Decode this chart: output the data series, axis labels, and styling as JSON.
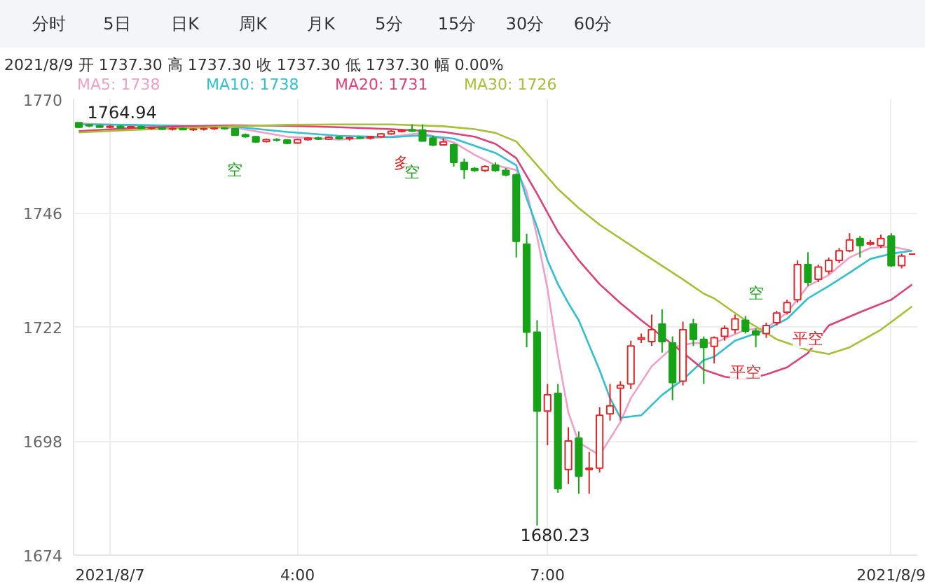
{
  "chart_data": {
    "type": "candlestick",
    "annotations": [
      "分时",
      "5日",
      "日K",
      "周K",
      "月K",
      "5分",
      "15分",
      "30分",
      "60分",
      "2021/8/9 开 1737.30 高 1737.30 收 1737.30 低 1737.30 幅 0.00%",
      "空",
      "多",
      "空",
      "空",
      "平空",
      "平空",
      "1764.94",
      "1680.23"
    ],
    "categories": [
      null,
      null,
      null,
      "2021/8/7",
      null,
      null,
      null,
      null,
      null,
      null,
      null,
      null,
      null,
      null,
      null,
      null,
      null,
      null,
      null,
      null,
      null,
      "4:00",
      null,
      null,
      null,
      null,
      null,
      null,
      null,
      null,
      null,
      null,
      null,
      null,
      null,
      null,
      null,
      null,
      null,
      null,
      null,
      null,
      null,
      null,
      null,
      "7:00",
      null,
      null,
      null,
      null,
      null,
      null,
      null,
      null,
      null,
      null,
      null,
      null,
      null,
      null,
      null,
      null,
      null,
      null,
      null,
      null,
      null,
      null,
      null,
      null,
      null,
      null,
      null,
      null,
      null,
      null,
      null,
      null,
      "2021/8/9",
      null,
      null
    ],
    "ohlc": [
      [
        1764.94,
        1764.94,
        1763.8,
        1764.0
      ],
      [
        1764.5,
        1764.7,
        1764.0,
        1764.3
      ],
      [
        1764.3,
        1764.6,
        1763.9,
        1764.0
      ],
      [
        1764.0,
        1764.4,
        1763.8,
        1764.2
      ],
      [
        1764.2,
        1764.4,
        1763.8,
        1763.9
      ],
      [
        1763.9,
        1764.3,
        1763.7,
        1764.1
      ],
      [
        1764.1,
        1764.3,
        1763.6,
        1763.8
      ],
      [
        1763.8,
        1764.1,
        1763.5,
        1763.9
      ],
      [
        1763.9,
        1764.1,
        1763.4,
        1763.6
      ],
      [
        1763.6,
        1764.0,
        1763.3,
        1763.7
      ],
      [
        1763.7,
        1763.9,
        1763.4,
        1763.5
      ],
      [
        1763.5,
        1763.8,
        1763.2,
        1763.6
      ],
      [
        1763.6,
        1763.9,
        1763.3,
        1763.7
      ],
      [
        1763.7,
        1764.0,
        1763.4,
        1763.8
      ],
      [
        1763.8,
        1764.0,
        1763.5,
        1763.7
      ],
      [
        1763.7,
        1763.8,
        1762.2,
        1762.3
      ],
      [
        1762.4,
        1762.7,
        1761.8,
        1762.0
      ],
      [
        1762.0,
        1762.2,
        1760.7,
        1760.9
      ],
      [
        1761.0,
        1761.6,
        1760.8,
        1761.4
      ],
      [
        1761.4,
        1761.7,
        1761.0,
        1761.3
      ],
      [
        1761.3,
        1761.5,
        1760.4,
        1760.6
      ],
      [
        1760.7,
        1761.6,
        1760.5,
        1761.4
      ],
      [
        1761.4,
        1761.9,
        1761.2,
        1761.7
      ],
      [
        1761.7,
        1762.0,
        1761.3,
        1761.5
      ],
      [
        1761.5,
        1762.1,
        1761.3,
        1761.9
      ],
      [
        1761.9,
        1762.2,
        1761.4,
        1761.6
      ],
      [
        1761.6,
        1762.0,
        1761.2,
        1761.8
      ],
      [
        1761.8,
        1762.1,
        1761.5,
        1761.7
      ],
      [
        1761.7,
        1762.2,
        1761.4,
        1762.0
      ],
      [
        1762.0,
        1762.8,
        1761.8,
        1762.6
      ],
      [
        1762.6,
        1763.4,
        1762.4,
        1763.1
      ],
      [
        1763.1,
        1763.6,
        1762.9,
        1763.3
      ],
      [
        1763.5,
        1764.6,
        1763.0,
        1763.2
      ],
      [
        1763.4,
        1764.6,
        1761.0,
        1761.1
      ],
      [
        1761.7,
        1762.2,
        1760.0,
        1760.3
      ],
      [
        1760.3,
        1761.7,
        1760.2,
        1760.9
      ],
      [
        1760.3,
        1760.6,
        1755.7,
        1756.6
      ],
      [
        1756.6,
        1757.4,
        1753.1,
        1755.1
      ],
      [
        1755.3,
        1755.6,
        1754.6,
        1754.9
      ],
      [
        1754.9,
        1756.0,
        1754.6,
        1755.7
      ],
      [
        1756.0,
        1756.6,
        1754.6,
        1754.9
      ],
      [
        1754.9,
        1755.4,
        1753.7,
        1754.0
      ],
      [
        1754.0,
        1754.3,
        1736.6,
        1740.0
      ],
      [
        1739.4,
        1741.6,
        1717.7,
        1720.9
      ],
      [
        1720.9,
        1723.4,
        1680.23,
        1704.3
      ],
      [
        1704.3,
        1710.0,
        1697.1,
        1707.7
      ],
      [
        1708.0,
        1710.0,
        1687.1,
        1688.0
      ],
      [
        1692.0,
        1700.9,
        1689.0,
        1698.0
      ],
      [
        1698.6,
        1700.0,
        1686.9,
        1690.6
      ],
      [
        1692.0,
        1695.7,
        1686.9,
        1692.3
      ],
      [
        1692.3,
        1705.1,
        1691.4,
        1703.4
      ],
      [
        1703.7,
        1710.0,
        1702.3,
        1705.4
      ],
      [
        1709.1,
        1710.6,
        1702.3,
        1709.7
      ],
      [
        1710.0,
        1719.1,
        1708.9,
        1718.0
      ],
      [
        1719.4,
        1720.6,
        1718.6,
        1719.7
      ],
      [
        1718.9,
        1724.6,
        1718.0,
        1721.4
      ],
      [
        1722.6,
        1725.7,
        1716.6,
        1718.9
      ],
      [
        1718.6,
        1720.0,
        1706.6,
        1710.3
      ],
      [
        1710.6,
        1723.1,
        1709.7,
        1721.4
      ],
      [
        1722.6,
        1723.7,
        1718.0,
        1719.4
      ],
      [
        1719.4,
        1720.0,
        1710.0,
        1717.7
      ],
      [
        1717.9,
        1720.0,
        1714.3,
        1719.7
      ],
      [
        1720.0,
        1722.3,
        1719.1,
        1721.7
      ],
      [
        1721.4,
        1724.6,
        1720.6,
        1723.7
      ],
      [
        1723.4,
        1724.3,
        1720.6,
        1721.1
      ],
      [
        1721.1,
        1721.7,
        1717.7,
        1720.3
      ],
      [
        1720.6,
        1722.9,
        1719.7,
        1722.3
      ],
      [
        1722.9,
        1725.4,
        1722.3,
        1724.9
      ],
      [
        1725.1,
        1727.7,
        1724.6,
        1727.1
      ],
      [
        1727.7,
        1736.0,
        1727.1,
        1735.1
      ],
      [
        1735.1,
        1737.7,
        1730.6,
        1731.4
      ],
      [
        1732.0,
        1735.1,
        1731.4,
        1734.6
      ],
      [
        1733.7,
        1736.6,
        1733.1,
        1736.0
      ],
      [
        1736.0,
        1738.6,
        1735.4,
        1738.0
      ],
      [
        1738.0,
        1741.7,
        1737.7,
        1740.3
      ],
      [
        1740.6,
        1741.1,
        1736.6,
        1739.1
      ],
      [
        1739.4,
        1740.3,
        1739.1,
        1739.7
      ],
      [
        1739.1,
        1741.4,
        1738.6,
        1740.6
      ],
      [
        1741.1,
        1741.7,
        1734.6,
        1734.9
      ],
      [
        1734.9,
        1737.4,
        1734.3,
        1736.9
      ],
      [
        1737.3,
        1737.3,
        1737.3,
        1737.3
      ]
    ],
    "series": [
      {
        "type": "line",
        "name": "MA5: 1738",
        "color": "#f0a0c8",
        "values": [
          1764.8,
          null,
          null,
          null,
          null,
          1764.4,
          null,
          null,
          null,
          null,
          1764.0,
          null,
          null,
          null,
          null,
          1763.9,
          null,
          null,
          null,
          null,
          1762.0,
          null,
          null,
          null,
          null,
          1761.4,
          null,
          null,
          null,
          null,
          1762.0,
          null,
          null,
          1762.8,
          null,
          null,
          1760.8,
          null,
          1758.2,
          null,
          1756.0,
          null,
          1755.0,
          1750.5,
          1741.0,
          1730.0,
          1716.0,
          1704.0,
          1697.7,
          null,
          1695.0,
          null,
          1702.0,
          1707.0,
          null,
          1713.7,
          null,
          1717.7,
          null,
          1718.6,
          null,
          1718.6,
          null,
          null,
          1721.4,
          null,
          1721.7,
          null,
          1725.0,
          null,
          1730.6,
          null,
          1732.9,
          null,
          1736.6,
          null,
          1738.6,
          null,
          1738.9,
          null,
          1738.0
        ]
      },
      {
        "type": "line",
        "name": "MA10: 1738",
        "color": "#30c0d0",
        "values": [
          1764.6,
          null,
          null,
          null,
          null,
          1764.5,
          null,
          null,
          null,
          null,
          1764.3,
          null,
          null,
          null,
          null,
          1764.1,
          null,
          null,
          null,
          null,
          1763.0,
          null,
          null,
          null,
          null,
          1762.2,
          null,
          null,
          null,
          null,
          1761.9,
          null,
          null,
          1762.3,
          null,
          null,
          1761.6,
          null,
          null,
          null,
          1758.6,
          null,
          1756.0,
          1749.0,
          1743.0,
          1736.0,
          1731.0,
          1727.0,
          1723.4,
          null,
          1712.9,
          1707.0,
          1702.9,
          null,
          1703.4,
          null,
          1707.7,
          null,
          1710.9,
          null,
          1715.0,
          1715.7,
          null,
          1719.1,
          null,
          null,
          1721.4,
          null,
          1723.7,
          null,
          1728.0,
          null,
          1730.6,
          null,
          1733.4,
          null,
          1736.3,
          null,
          1737.4,
          null,
          1738.0
        ]
      },
      {
        "type": "line",
        "name": "MA20: 1731",
        "color": "#e0407a",
        "values": [
          1763.2,
          null,
          null,
          null,
          null,
          1763.8,
          null,
          null,
          null,
          null,
          1764.2,
          null,
          null,
          null,
          null,
          1764.4,
          null,
          null,
          null,
          null,
          1764.3,
          null,
          null,
          null,
          null,
          1764.0,
          null,
          null,
          null,
          null,
          1763.6,
          null,
          null,
          null,
          null,
          1763.0,
          null,
          null,
          1762.0,
          null,
          1760.5,
          null,
          1757.5,
          null,
          1750.0,
          null,
          1742.0,
          null,
          1736.0,
          null,
          1731.0,
          null,
          1727.0,
          null,
          1723.4,
          null,
          1720.0,
          null,
          1716.6,
          null,
          1713.0,
          null,
          1711.5,
          null,
          1711.0,
          null,
          1712.0,
          null,
          1713.5,
          null,
          1716.5,
          null,
          1722.3,
          null,
          null,
          1725.1,
          null,
          null,
          1727.7,
          null,
          1730.9
        ]
      },
      {
        "type": "line",
        "name": "MA30: 1726",
        "color": "#a8c034",
        "values": [
          1762.9,
          null,
          null,
          null,
          null,
          1763.4,
          null,
          null,
          null,
          null,
          1763.8,
          null,
          null,
          null,
          null,
          1764.2,
          null,
          null,
          null,
          null,
          1764.5,
          null,
          null,
          null,
          null,
          1764.6,
          null,
          null,
          null,
          null,
          1764.6,
          null,
          null,
          null,
          null,
          1764.2,
          null,
          null,
          1763.6,
          null,
          1762.8,
          null,
          1761.0,
          null,
          1756.0,
          null,
          1751.0,
          null,
          1747.0,
          null,
          1743.5,
          null,
          null,
          null,
          1737.7,
          null,
          null,
          null,
          1732.0,
          null,
          1729.0,
          1728.0,
          null,
          null,
          1723.4,
          null,
          null,
          1719.4,
          null,
          null,
          1717.1,
          null,
          1716.3,
          null,
          1717.7,
          null,
          null,
          1721.4,
          null,
          null,
          1726.3
        ]
      }
    ],
    "ylim": [
      1674,
      1770
    ],
    "yticks": [
      1674,
      1698,
      1722,
      1746,
      1770
    ],
    "grid": true,
    "legend": "top"
  }
}
